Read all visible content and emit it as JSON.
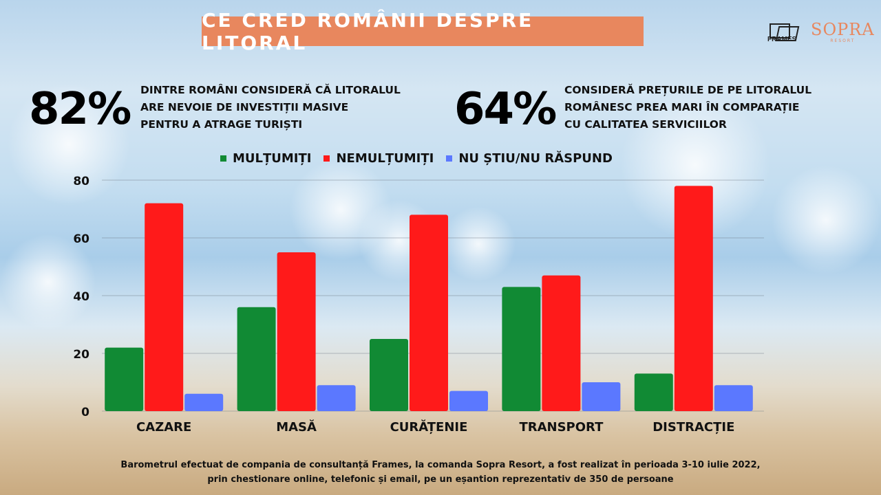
{
  "title": "CE CRED ROMÂNII DESPRE LITORAL",
  "logos": {
    "frames": "FRAMES",
    "sopra": "SOPRA",
    "sopra_sub": "RESORT"
  },
  "stats": [
    {
      "value": "82%",
      "lines": [
        "DINTRE ROMÂNI CONSIDERĂ CĂ LITORALUL",
        "ARE NEVOIE DE INVESTIȚII MASIVE",
        "PENTRU A ATRAGE TURIȘTI"
      ]
    },
    {
      "value": "64%",
      "lines": [
        "CONSIDERĂ PREȚURILE DE PE LITORALUL",
        "ROMÂNESC PREA MARI ÎN COMPARAȚIE",
        "CU CALITATEA SERVICIILOR"
      ]
    }
  ],
  "colors": {
    "banner": "#e8875e",
    "green": "#118a34",
    "red": "#ff1a1a",
    "blue": "#5b78ff"
  },
  "chart_data": {
    "type": "bar",
    "categories": [
      "CAZARE",
      "MASĂ",
      "CURĂȚENIE",
      "TRANSPORT",
      "DISTRACȚIE"
    ],
    "series": [
      {
        "name": "MULȚUMIȚI",
        "color": "#118a34",
        "values": [
          22,
          36,
          25,
          43,
          13
        ]
      },
      {
        "name": "NEMULȚUMIȚI",
        "color": "#ff1a1a",
        "values": [
          72,
          55,
          68,
          47,
          78
        ]
      },
      {
        "name": "NU ȘTIU/NU RĂSPUND",
        "color": "#5b78ff",
        "values": [
          6,
          9,
          7,
          10,
          9
        ]
      }
    ],
    "ylim": [
      0,
      80
    ],
    "yticks": [
      0,
      20,
      40,
      60,
      80
    ],
    "grid": true,
    "legend": "top"
  },
  "footnote": [
    "Barometrul efectuat de compania de consultanță Frames, la comanda Sopra Resort, a fost realizat în perioada 3-10 iulie 2022,",
    "prin chestionare online, telefonic și email, pe un eșantion reprezentativ de 350 de persoane"
  ]
}
